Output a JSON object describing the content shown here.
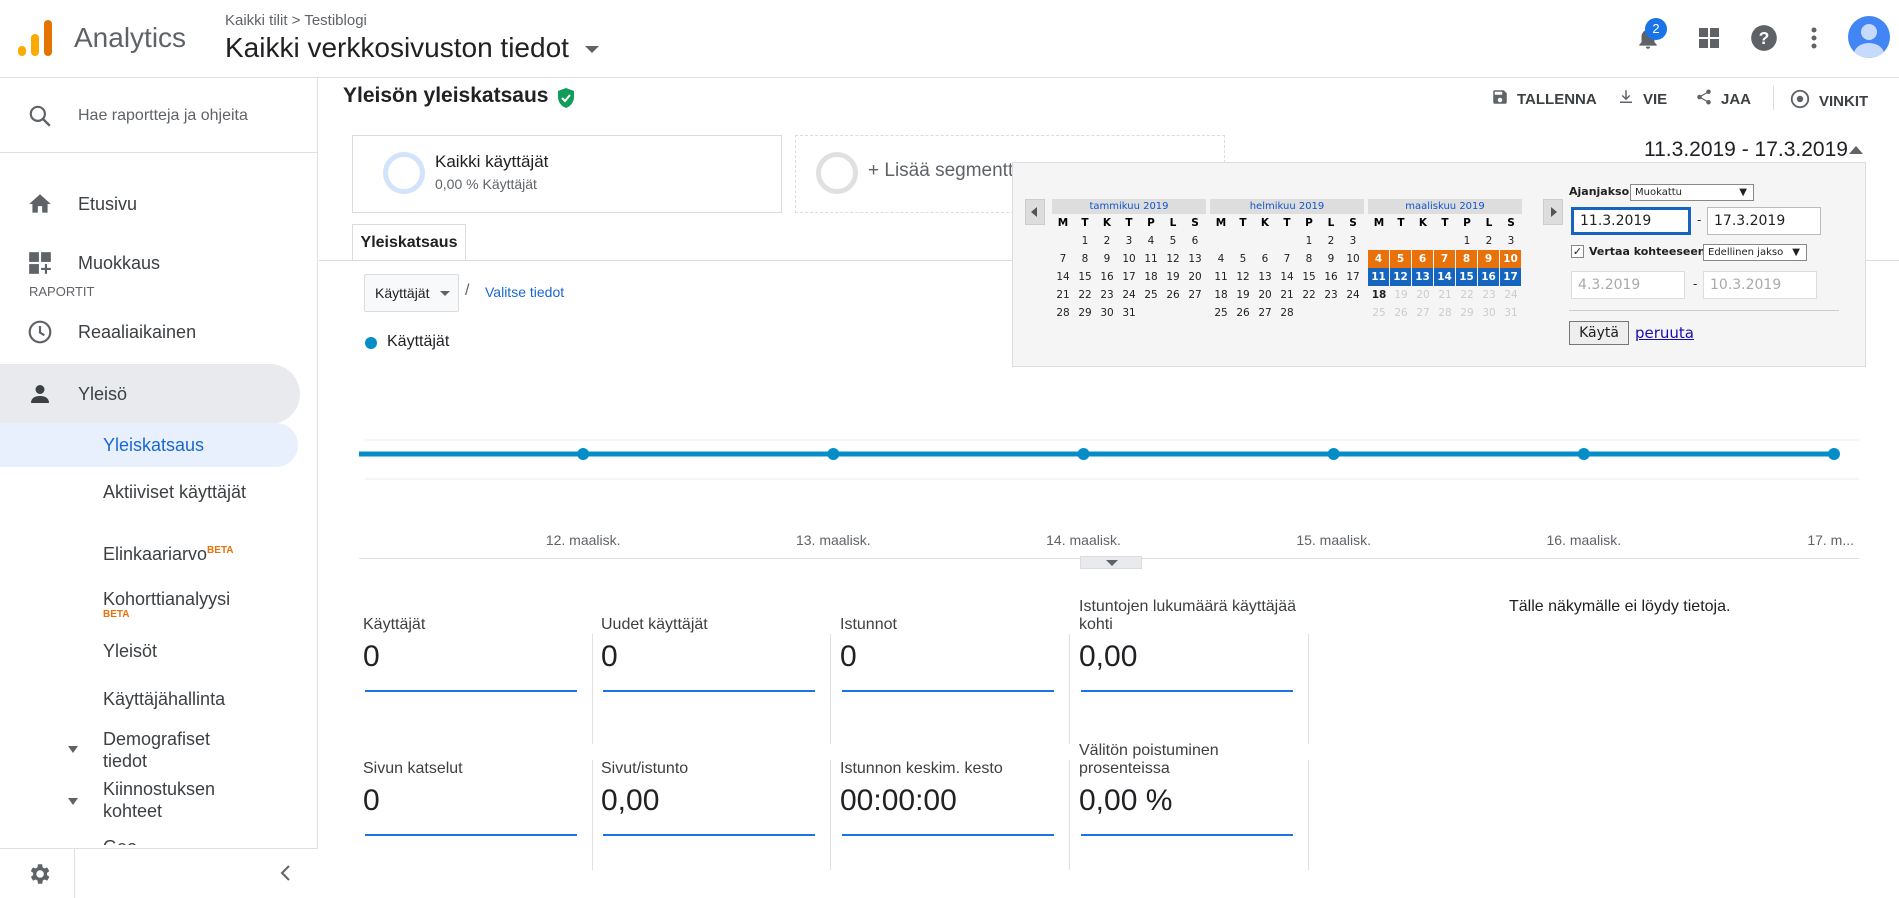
{
  "header": {
    "app_name": "Analytics",
    "breadcrumb": "Kaikki tilit > Testiblogi",
    "property": "Kaikki verkkosivuston tiedot",
    "notification_count": "2"
  },
  "sidebar": {
    "search_placeholder": "Hae raportteja ja ohjeita",
    "home": "Etusivu",
    "customization": "Muokkaus",
    "reports_heading": "RAPORTIT",
    "realtime": "Reaaliaikainen",
    "audience": "Yleisö",
    "sub": {
      "overview": "Yleiskatsaus",
      "active_users": "Aktiiviset käyttäjät",
      "lifetime": "Elinkaariarvo",
      "lifetime_badge": "BETA",
      "cohort": "Kohorttianalyysi",
      "cohort_badge": "BETA",
      "audiences": "Yleisöt",
      "user_explorer": "Käyttäjähallinta",
      "demographics": "Demografiset tiedot",
      "interests": "Kiinnostuksen kohteet",
      "geo": "Geo"
    }
  },
  "report": {
    "title": "Yleisön yleiskatsaus",
    "actions": {
      "save": "TALLENNA",
      "export": "VIE",
      "share": "JAA",
      "insights": "VINKIT"
    },
    "date_range": "11.3.2019 - 17.3.2019",
    "segment_name": "Kaikki käyttäjät",
    "segment_sub": "0,00 % Käyttäjät",
    "add_segment": "+ Lisää segmentti",
    "tab": "Yleiskatsaus",
    "metric_select": "Käyttäjät",
    "select_metric_link": "Valitse tiedot",
    "legend": "Käyttäjät",
    "no_data": "Tälle näkymälle ei löydy tietoja.",
    "metrics": [
      {
        "label": "Käyttäjät",
        "value": "0"
      },
      {
        "label": "Uudet käyttäjät",
        "value": "0"
      },
      {
        "label": "Istunnot",
        "value": "0"
      },
      {
        "label": "Istuntojen lukumäärä käyttäjää kohti",
        "value": "0,00"
      },
      {
        "label": "Sivun katselut",
        "value": "0"
      },
      {
        "label": "Sivut/istunto",
        "value": "0,00"
      },
      {
        "label": "Istunnon keskim. kesto",
        "value": "00:00:00"
      },
      {
        "label": "Välitön poistuminen prosenteissa",
        "value": "0,00 %"
      }
    ]
  },
  "chart_data": {
    "type": "line",
    "x": [
      "…",
      "12. maalisk.",
      "13. maalisk.",
      "14. maalisk.",
      "15. maalisk.",
      "16. maalisk.",
      "17. m..."
    ],
    "series": [
      {
        "name": "Käyttäjät",
        "values": [
          0,
          0,
          0,
          0,
          0,
          0,
          0
        ]
      }
    ],
    "y_ticks": [
      "1",
      "0"
    ],
    "ylim": [
      0,
      1
    ],
    "color": "#058dc7"
  },
  "calendar": {
    "period_label": "Ajanjakso:",
    "period_value": "Muokattu",
    "start": "11.3.2019",
    "end": "17.3.2019",
    "compare_label": "Vertaa kohteeseen:",
    "compare_value": "Edellinen jakso",
    "compare_start": "4.3.2019",
    "compare_end": "10.3.2019",
    "apply": "Käytä",
    "cancel": "peruuta",
    "weekdays": [
      "M",
      "T",
      "K",
      "T",
      "P",
      "L",
      "S"
    ],
    "months": [
      {
        "name": "tammikuu 2019",
        "offset": 1,
        "days": 31
      },
      {
        "name": "helmikuu 2019",
        "offset": 4,
        "days": 28
      },
      {
        "name": "maaliskuu 2019",
        "offset": 4,
        "days": 31
      }
    ]
  }
}
